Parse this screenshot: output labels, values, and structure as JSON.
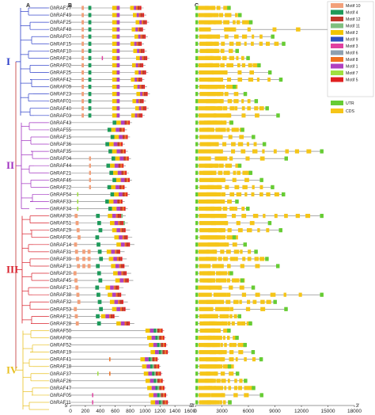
{
  "panels": {
    "a": "A",
    "b": "B",
    "c": "C"
  },
  "groups": [
    {
      "label": "I",
      "color": "#2d3fc9",
      "start": 0,
      "end": 15
    },
    {
      "label": "II",
      "color": "#a030c0",
      "start": 16,
      "end": 28
    },
    {
      "label": "III",
      "color": "#d8202c",
      "start": 29,
      "end": 44
    },
    {
      "label": "IV",
      "color": "#e8c020",
      "start": 45,
      "end": 56
    }
  ],
  "genes": [
    "GhRAF27",
    "GhRAF49",
    "GhRAF25",
    "GhRAF48",
    "GhRAF07",
    "GhRAF15",
    "GhRAF10",
    "GhRAF24",
    "GhRAF02",
    "GhRAF25",
    "GhRAF42",
    "GhRAF09",
    "GhRAF23",
    "GhRAF01",
    "GhRAF40",
    "GhRAF03",
    "GhRAF43",
    "GhRAF55",
    "GhRAF15",
    "GhRAF36",
    "GhRAF35",
    "GhRAF04",
    "GhRAF44",
    "GhRAF21",
    "GhRAF46",
    "GhRAF22",
    "GhRAF54",
    "GhRAF33",
    "GhRAF34",
    "GhRAF30",
    "GhRAF51",
    "GhRAF29",
    "GhRAF06",
    "GhRAF14",
    "GhRAF31",
    "GhRAF39",
    "GhRAF13",
    "GhRAF20",
    "GhRAF45",
    "GhRAF17",
    "GhRAF38",
    "GhRAF32",
    "GhRAF53",
    "GhRAF12",
    "GhRAF28",
    "GhRAF50",
    "GhRAF08",
    "GhRAF52",
    "GhRAF19",
    "GhRAF41",
    "GhRAF18",
    "GhRAF37",
    "GhRAF26",
    "GhRAF47",
    "GhRAF05",
    "GhRAF11"
  ],
  "motif_legend": [
    {
      "name": "Motif 10",
      "color": "#f2a07a"
    },
    {
      "name": "Motif 4",
      "color": "#1e9a5a"
    },
    {
      "name": "Motif 12",
      "color": "#c0392b"
    },
    {
      "name": "Motif 11",
      "color": "#7fbf7f"
    },
    {
      "name": "Motif 2",
      "color": "#f2c500"
    },
    {
      "name": "Motif 9",
      "color": "#3050c0"
    },
    {
      "name": "Motif 3",
      "color": "#e040a0"
    },
    {
      "name": "Motif 6",
      "color": "#8fa0b0"
    },
    {
      "name": "Motif 8",
      "color": "#f07020"
    },
    {
      "name": "Motif 1",
      "color": "#b040c0"
    },
    {
      "name": "Motif 7",
      "color": "#a0e040"
    },
    {
      "name": "Motif 5",
      "color": "#e02020"
    }
  ],
  "structure_legend": [
    {
      "name": "UTR",
      "color": "#66cc33"
    },
    {
      "name": "CDS",
      "color": "#f5c518"
    }
  ],
  "axis_b": {
    "ticks": [
      "0",
      "200",
      "400",
      "600",
      "800",
      "1000",
      "1200",
      "1400",
      "1600"
    ],
    "left_label": "5'",
    "right_label": "3'"
  },
  "axis_c": {
    "ticks": [
      "0",
      "3000",
      "6000",
      "9000",
      "12000",
      "15000",
      "18000"
    ],
    "left_label": "5'",
    "right_label": "3'"
  }
}
